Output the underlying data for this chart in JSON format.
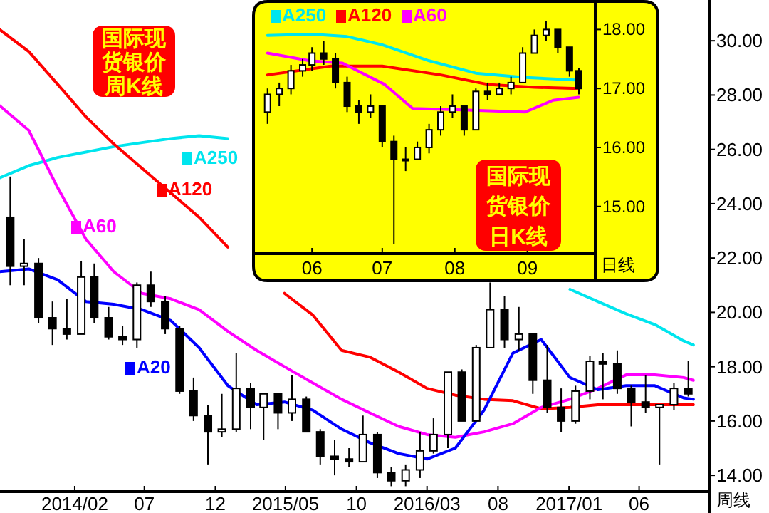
{
  "chart_data": [
    {
      "type": "candlestick",
      "title": "国际现货银价周K线",
      "xlabel": "周线",
      "x": [
        "2013-09-15",
        "2013-10-15",
        "2013-11-15",
        "2013-12-15",
        "2014-01-15",
        "2014-02-15",
        "2014-03-15",
        "2014-04-15",
        "2014-05-15",
        "2014-06-15",
        "2014-07-15",
        "2014-08-15",
        "2014-09-15",
        "2014-10-15",
        "2014-11-15",
        "2014-12-15",
        "2015-01-15",
        "2015-02-15",
        "2015-03-15",
        "2015-04-15",
        "2015-05-15",
        "2015-06-15",
        "2015-07-15",
        "2015-08-15",
        "2015-09-15",
        "2015-10-15",
        "2015-11-15",
        "2015-12-15",
        "2016-01-15",
        "2016-02-15",
        "2016-03-15",
        "2016-04-15",
        "2016-05-15",
        "2016-06-15",
        "2016-07-15",
        "2016-08-15",
        "2016-09-15",
        "2016-10-15",
        "2016-11-15",
        "2016-12-15",
        "2017-01-15",
        "2017-02-15",
        "2017-03-15",
        "2017-04-15",
        "2017-05-15",
        "2017-06-15",
        "2017-07-15",
        "2017-08-15",
        "2017-09-15"
      ],
      "ohlc": [
        [
          23.5,
          25.0,
          21.0,
          21.7
        ],
        [
          21.7,
          22.7,
          21.0,
          21.8
        ],
        [
          21.8,
          22.0,
          19.6,
          19.8
        ],
        [
          19.8,
          20.4,
          18.8,
          19.4
        ],
        [
          19.4,
          20.5,
          19.0,
          19.2
        ],
        [
          19.2,
          21.9,
          19.2,
          21.3
        ],
        [
          21.3,
          21.8,
          19.6,
          19.8
        ],
        [
          19.8,
          20.2,
          19.0,
          19.1
        ],
        [
          19.1,
          19.5,
          18.8,
          19.0
        ],
        [
          19.0,
          21.1,
          18.7,
          21.0
        ],
        [
          21.0,
          21.5,
          20.2,
          20.4
        ],
        [
          20.4,
          20.6,
          19.2,
          19.4
        ],
        [
          19.4,
          19.5,
          17.0,
          17.1
        ],
        [
          17.1,
          17.6,
          16.0,
          16.2
        ],
        [
          16.2,
          16.6,
          14.4,
          15.6
        ],
        [
          15.6,
          17.0,
          15.4,
          15.7
        ],
        [
          15.7,
          18.5,
          15.6,
          17.2
        ],
        [
          17.2,
          17.4,
          15.7,
          16.5
        ],
        [
          16.5,
          17.0,
          15.3,
          17.0
        ],
        [
          17.0,
          17.0,
          15.7,
          16.3
        ],
        [
          16.3,
          17.7,
          16.0,
          16.8
        ],
        [
          16.8,
          16.9,
          15.6,
          15.6
        ],
        [
          15.6,
          15.7,
          14.4,
          14.7
        ],
        [
          14.7,
          15.3,
          14.0,
          14.6
        ],
        [
          14.6,
          15.0,
          14.3,
          14.5
        ],
        [
          14.5,
          16.2,
          14.5,
          15.5
        ],
        [
          15.5,
          15.6,
          13.9,
          14.1
        ],
        [
          14.1,
          14.3,
          13.6,
          13.8
        ],
        [
          13.8,
          14.4,
          13.6,
          14.2
        ],
        [
          14.2,
          15.6,
          13.9,
          14.9
        ],
        [
          14.9,
          16.1,
          14.8,
          15.5
        ],
        [
          15.5,
          17.8,
          15.0,
          17.8
        ],
        [
          17.8,
          17.9,
          16.0,
          16.0
        ],
        [
          16.0,
          18.8,
          16.0,
          18.7
        ],
        [
          18.7,
          21.1,
          18.7,
          20.1
        ],
        [
          20.1,
          20.6,
          18.7,
          19.0
        ],
        [
          19.0,
          20.2,
          18.6,
          19.2
        ],
        [
          19.2,
          19.2,
          17.0,
          17.5
        ],
        [
          17.5,
          18.8,
          16.3,
          16.5
        ],
        [
          16.5,
          17.2,
          15.6,
          16.0
        ],
        [
          16.0,
          17.3,
          15.9,
          17.1
        ],
        [
          17.1,
          18.4,
          16.8,
          18.2
        ],
        [
          18.2,
          18.5,
          16.8,
          18.1
        ],
        [
          18.1,
          18.6,
          17.0,
          17.2
        ],
        [
          17.2,
          17.3,
          15.8,
          16.7
        ],
        [
          16.7,
          17.7,
          16.3,
          16.5
        ],
        [
          16.5,
          16.6,
          14.4,
          16.6
        ],
        [
          16.6,
          17.4,
          16.4,
          17.2
        ],
        [
          17.2,
          18.2,
          16.9,
          17.0
        ]
      ],
      "series": [
        {
          "type": "line",
          "name": "A250",
          "color": "#00e5ee",
          "x": [
            "2013-08-24",
            "2013-10-25",
            "2013-12-26",
            "2014-02-25",
            "2014-04-26",
            "2014-06-26",
            "2014-08-27",
            "2014-10-27",
            "2014-12-28",
            "2015-02-28",
            "2015-04-29",
            "2015-06-29",
            "2015-08-30",
            "2015-10-30",
            "2015-12-31",
            "2016-03-01",
            "2016-05-01",
            "2016-07-02",
            "2016-09-02",
            "2016-11-02",
            "2017-01-03",
            "2017-03-04",
            "2017-05-04",
            "2017-07-05",
            "2017-09-05",
            "2017-09-26"
          ],
          "values": [
            24.96,
            25.4,
            25.7,
            25.9,
            26.1,
            26.25,
            26.4,
            26.5,
            26.4,
            null,
            null,
            null,
            null,
            null,
            null,
            null,
            null,
            null,
            null,
            null,
            20.85,
            20.4,
            19.95,
            19.55,
            18.95,
            18.8
          ]
        },
        {
          "type": "line",
          "name": "A120",
          "color": "#ff0000",
          "x": [
            "2013-08-24",
            "2013-10-25",
            "2013-12-26",
            "2014-02-25",
            "2014-04-26",
            "2014-06-26",
            "2014-08-27",
            "2014-10-27",
            "2014-12-28",
            "2015-02-28",
            "2015-04-29",
            "2015-06-29",
            "2015-08-30",
            "2015-10-30",
            "2015-12-31",
            "2016-03-01",
            "2016-05-01",
            "2016-07-02",
            "2016-09-02",
            "2016-11-02",
            "2017-01-03",
            "2017-03-04",
            "2017-05-04",
            "2017-07-05",
            "2017-09-05",
            "2017-09-26"
          ],
          "values": [
            30.4,
            29.6,
            28.4,
            27.2,
            26.2,
            25.3,
            24.4,
            23.5,
            22.4,
            null,
            20.7,
            19.9,
            18.6,
            18.35,
            17.8,
            17.2,
            16.95,
            16.8,
            16.75,
            16.45,
            16.5,
            16.6,
            16.6,
            16.6,
            16.6,
            16.6
          ]
        },
        {
          "type": "line",
          "name": "A60",
          "color": "#ff00ff",
          "x": [
            "2013-08-24",
            "2013-10-25",
            "2013-12-26",
            "2014-02-25",
            "2014-04-26",
            "2014-06-26",
            "2014-08-27",
            "2014-10-27",
            "2014-12-28",
            "2015-02-28",
            "2015-04-29",
            "2015-06-29",
            "2015-08-30",
            "2015-10-30",
            "2015-12-31",
            "2016-03-01",
            "2016-05-01",
            "2016-07-02",
            "2016-09-02",
            "2016-11-02",
            "2017-01-03",
            "2017-03-04",
            "2017-05-04",
            "2017-07-05",
            "2017-09-05",
            "2017-09-26"
          ],
          "values": [
            27.6,
            26.7,
            24.6,
            22.7,
            21.5,
            20.7,
            20.5,
            20.1,
            19.3,
            18.6,
            18.0,
            17.4,
            16.8,
            16.3,
            15.8,
            15.5,
            15.4,
            15.6,
            15.9,
            16.5,
            16.8,
            17.2,
            17.7,
            17.7,
            17.6,
            17.5
          ]
        },
        {
          "type": "line",
          "name": "A20",
          "color": "#0000ff",
          "x": [
            "2013-08-24",
            "2013-10-25",
            "2013-12-26",
            "2014-02-25",
            "2014-04-26",
            "2014-06-26",
            "2014-08-27",
            "2014-10-27",
            "2014-12-28",
            "2015-02-28",
            "2015-04-29",
            "2015-06-29",
            "2015-08-30",
            "2015-10-30",
            "2015-12-31",
            "2016-03-01",
            "2016-05-01",
            "2016-07-02",
            "2016-09-02",
            "2016-11-02",
            "2017-01-03",
            "2017-03-04",
            "2017-05-04",
            "2017-07-05",
            "2017-09-05",
            "2017-09-26"
          ],
          "values": [
            21.5,
            21.6,
            21.2,
            20.4,
            20.3,
            20.1,
            19.7,
            18.7,
            17.3,
            16.6,
            16.7,
            16.4,
            15.7,
            15.2,
            14.8,
            14.6,
            15.0,
            16.4,
            18.5,
            19.0,
            17.6,
            17.15,
            17.3,
            17.3,
            16.85,
            16.8
          ]
        }
      ],
      "xlim": [
        "2013-08-24",
        "2017-10-30"
      ],
      "ylim": [
        13.4,
        31.5
      ],
      "legend": "left",
      "xticks": [
        {
          "value": "2014-02",
          "label": "2014/02"
        },
        {
          "value": "2014-07",
          "label": "07"
        },
        {
          "value": "2014-12",
          "label": "12"
        },
        {
          "value": "2015-05",
          "label": "2015/05"
        },
        {
          "value": "2015-10",
          "label": "10"
        },
        {
          "value": "2016-03",
          "label": "2016/03"
        },
        {
          "value": "2016-08",
          "label": "08"
        },
        {
          "value": "2017-01",
          "label": "2017/01"
        },
        {
          "value": "2017-06",
          "label": "06"
        }
      ],
      "yticks": [
        {
          "value": 14,
          "label": "14.00"
        },
        {
          "value": 16,
          "label": "16.00"
        },
        {
          "value": 18,
          "label": "18.00"
        },
        {
          "value": 20,
          "label": "20.00"
        },
        {
          "value": 22,
          "label": "22.00"
        },
        {
          "value": 24,
          "label": "24.00"
        },
        {
          "value": 26,
          "label": "26.00"
        },
        {
          "value": 28,
          "label": "28.00"
        },
        {
          "value": 30,
          "label": "30.00"
        }
      ]
    },
    {
      "type": "candlestick",
      "title": "国际现货银价日K线",
      "xlabel": "日线",
      "x": [
        "2017-05-13",
        "2017-05-18",
        "2017-05-23",
        "2017-05-28",
        "2017-06-01",
        "2017-06-06",
        "2017-06-11",
        "2017-06-16",
        "2017-06-21",
        "2017-06-26",
        "2017-07-01",
        "2017-07-06",
        "2017-07-11",
        "2017-07-16",
        "2017-07-21",
        "2017-07-26",
        "2017-07-31",
        "2017-08-05",
        "2017-08-10",
        "2017-08-15",
        "2017-08-20",
        "2017-08-25",
        "2017-08-30",
        "2017-09-04",
        "2017-09-09",
        "2017-09-14",
        "2017-09-19",
        "2017-09-23"
      ],
      "ohlc": [
        [
          16.6,
          17.0,
          16.4,
          16.9
        ],
        [
          16.9,
          17.1,
          16.7,
          17.0
        ],
        [
          17.0,
          17.4,
          16.9,
          17.3
        ],
        [
          17.3,
          17.5,
          17.2,
          17.4
        ],
        [
          17.4,
          17.7,
          17.3,
          17.6
        ],
        [
          17.6,
          17.8,
          17.4,
          17.5
        ],
        [
          17.5,
          17.6,
          17.0,
          17.1
        ],
        [
          17.1,
          17.2,
          16.6,
          16.7
        ],
        [
          16.7,
          16.8,
          16.4,
          16.6
        ],
        [
          16.6,
          16.9,
          16.5,
          16.7
        ],
        [
          16.7,
          16.7,
          16.0,
          16.1
        ],
        [
          16.1,
          16.2,
          14.36,
          15.8
        ],
        [
          15.8,
          16.0,
          15.6,
          15.8
        ],
        [
          15.8,
          16.1,
          15.8,
          16.0
        ],
        [
          16.0,
          16.4,
          15.9,
          16.3
        ],
        [
          16.3,
          16.7,
          16.2,
          16.6
        ],
        [
          16.6,
          16.9,
          16.5,
          16.7
        ],
        [
          16.7,
          16.7,
          16.2,
          16.3
        ],
        [
          16.3,
          17.0,
          16.3,
          16.95
        ],
        [
          16.95,
          17.1,
          16.8,
          16.9
        ],
        [
          16.9,
          17.1,
          16.9,
          17.0
        ],
        [
          17.0,
          17.2,
          16.9,
          17.1
        ],
        [
          17.1,
          17.7,
          17.1,
          17.6
        ],
        [
          17.6,
          18.0,
          17.6,
          17.9
        ],
        [
          17.9,
          18.15,
          17.8,
          18.0
        ],
        [
          18.0,
          18.0,
          17.6,
          17.7
        ],
        [
          17.7,
          17.7,
          17.2,
          17.3
        ],
        [
          17.3,
          17.35,
          16.9,
          17.0
        ]
      ],
      "series": [
        {
          "type": "line",
          "name": "A250",
          "color": "#00e5ee",
          "x": [
            "2017-05-13",
            "2017-06-01",
            "2017-06-16",
            "2017-07-01",
            "2017-07-21",
            "2017-08-10",
            "2017-08-30",
            "2017-09-23"
          ],
          "values": [
            17.9,
            17.92,
            17.88,
            17.74,
            17.47,
            17.26,
            17.19,
            17.14
          ]
        },
        {
          "type": "line",
          "name": "A120",
          "color": "#ff0000",
          "x": [
            "2017-05-13",
            "2017-06-09",
            "2017-07-01",
            "2017-07-26",
            "2017-08-15",
            "2017-09-04",
            "2017-09-23"
          ],
          "values": [
            17.23,
            17.38,
            17.38,
            17.23,
            17.07,
            17.02,
            17.0
          ]
        },
        {
          "type": "line",
          "name": "A60",
          "color": "#ff00ff",
          "x": [
            "2017-05-13",
            "2017-05-31",
            "2017-06-14",
            "2017-07-02",
            "2017-07-14",
            "2017-08-02",
            "2017-08-31",
            "2017-09-12",
            "2017-09-23"
          ],
          "values": [
            17.6,
            17.47,
            17.43,
            17.07,
            16.66,
            16.64,
            16.6,
            16.8,
            16.85
          ]
        }
      ],
      "xlim": [
        "2017-05-07",
        "2017-09-30"
      ],
      "ylim": [
        14.2,
        18.5
      ],
      "legend": "top left",
      "xticks": [
        {
          "value": "2017-06",
          "label": "06"
        },
        {
          "value": "2017-07",
          "label": "07"
        },
        {
          "value": "2017-08",
          "label": "08"
        },
        {
          "value": "2017-09",
          "label": "09"
        }
      ],
      "yticks": [
        {
          "value": 15,
          "label": "15.00"
        },
        {
          "value": 16,
          "label": "16.00"
        },
        {
          "value": 17,
          "label": "17.00"
        },
        {
          "value": 18,
          "label": "18.00"
        }
      ]
    }
  ]
}
